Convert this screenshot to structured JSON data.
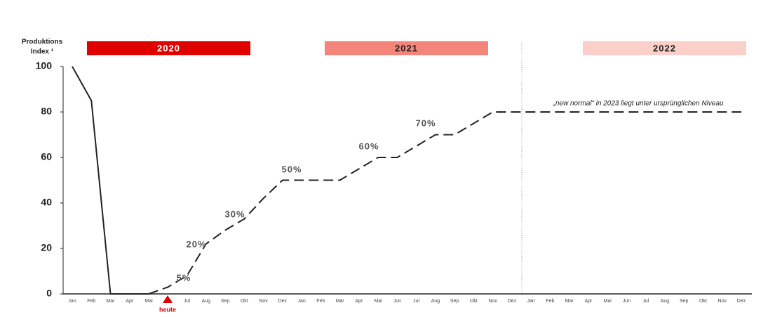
{
  "chart_data": {
    "type": "line",
    "y_label_lines": [
      "Produktions",
      "Index ¹"
    ],
    "year_bands": [
      {
        "label": "2020",
        "color": "#e00000",
        "text_color": "#ffffff"
      },
      {
        "label": "2021",
        "color": "#f4857a",
        "text_color": "#222222"
      },
      {
        "label": "2022",
        "color": "#fbcfca",
        "text_color": "#222222"
      }
    ],
    "categories": [
      "Jan",
      "Feb",
      "Mar",
      "Apr",
      "Mai",
      "Jun",
      "Jul",
      "Aug",
      "Sep",
      "Okt",
      "Nov",
      "Dez",
      "Jan",
      "Feb",
      "Mar",
      "Apr",
      "Mai",
      "Jun",
      "Jul",
      "Aug",
      "Sep",
      "Okt",
      "Nov",
      "Dez",
      "Jan",
      "Feb",
      "Mar",
      "Apr",
      "Mai",
      "Jun",
      "Jul",
      "Aug",
      "Sep",
      "Okt",
      "Nov",
      "Dez"
    ],
    "series": [
      {
        "color": "#222222",
        "line_style": "solid",
        "values": [
          100,
          85,
          0,
          0,
          0,
          null,
          null,
          null,
          null,
          null,
          null,
          null,
          null,
          null,
          null,
          null,
          null,
          null,
          null,
          null,
          null,
          null,
          null,
          null,
          null,
          null,
          null,
          null,
          null,
          null,
          null,
          null,
          null,
          null,
          null,
          null
        ]
      },
      {
        "color": "#222222",
        "line_style": "dashed",
        "values": [
          null,
          null,
          null,
          null,
          0,
          3,
          8,
          22,
          28,
          33,
          42,
          50,
          50,
          50,
          50,
          55,
          60,
          60,
          65,
          70,
          70,
          75,
          80,
          80,
          80,
          80,
          80,
          80,
          80,
          80,
          80,
          80,
          80,
          80,
          80,
          80
        ]
      }
    ],
    "ylim": [
      0,
      100
    ],
    "yticks": [
      0,
      20,
      40,
      60,
      80,
      100
    ],
    "grid": false,
    "annotations": [
      "5%",
      "20%",
      "30%",
      "50%",
      "60%",
      "70%"
    ],
    "note": "„new normal“ in 2023 liegt unter ursprünglichen Niveau",
    "today_label": "heute",
    "today_color": "#e00000"
  }
}
